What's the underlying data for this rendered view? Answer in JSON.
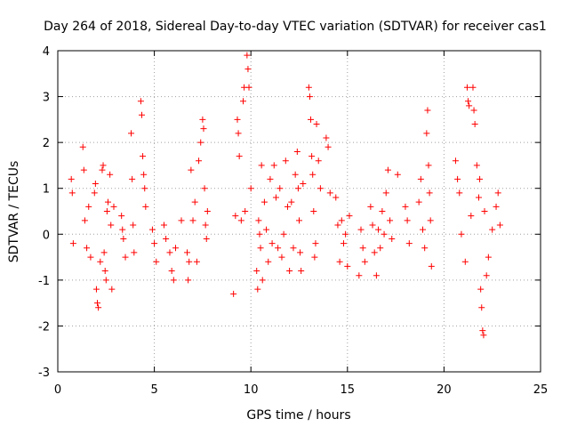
{
  "chart_data": {
    "type": "scatter",
    "title": "Day 264 of 2018, Sidereal Day-to-day VTEC variation (SDTVAR) for receiver cas1",
    "xlabel": "GPS time / hours",
    "ylabel": "SDTVAR / TECUs",
    "xlim": [
      0,
      25
    ],
    "ylim": [
      -3,
      4
    ],
    "xticks": [
      "0",
      "5",
      "10",
      "15",
      "20",
      "25"
    ],
    "yticks": [
      "-3",
      "-2",
      "-1",
      "0",
      "1",
      "2",
      "3",
      "4"
    ],
    "grid": true,
    "marker": "+",
    "color": "#ff0000",
    "series": [
      {
        "name": "SDTVAR",
        "points": [
          [
            0.7,
            1.2
          ],
          [
            0.75,
            0.9
          ],
          [
            0.8,
            -0.2
          ],
          [
            1.3,
            1.9
          ],
          [
            1.35,
            1.4
          ],
          [
            1.4,
            0.3
          ],
          [
            1.5,
            -0.3
          ],
          [
            1.6,
            0.6
          ],
          [
            1.7,
            -0.5
          ],
          [
            1.9,
            0.9
          ],
          [
            1.95,
            1.1
          ],
          [
            2.0,
            -1.2
          ],
          [
            2.05,
            -1.5
          ],
          [
            2.1,
            -1.6
          ],
          [
            2.2,
            -0.6
          ],
          [
            2.3,
            1.4
          ],
          [
            2.35,
            1.5
          ],
          [
            2.4,
            -0.4
          ],
          [
            2.45,
            -0.8
          ],
          [
            2.5,
            -1.0
          ],
          [
            2.55,
            0.5
          ],
          [
            2.6,
            0.7
          ],
          [
            2.7,
            1.3
          ],
          [
            2.75,
            0.2
          ],
          [
            2.8,
            -1.2
          ],
          [
            2.9,
            0.6
          ],
          [
            3.3,
            0.4
          ],
          [
            3.35,
            0.1
          ],
          [
            3.4,
            -0.1
          ],
          [
            3.5,
            -0.5
          ],
          [
            3.8,
            2.2
          ],
          [
            3.85,
            1.2
          ],
          [
            3.9,
            0.2
          ],
          [
            3.95,
            -0.4
          ],
          [
            4.3,
            2.9
          ],
          [
            4.35,
            2.6
          ],
          [
            4.4,
            1.7
          ],
          [
            4.45,
            1.3
          ],
          [
            4.5,
            1.0
          ],
          [
            4.55,
            0.6
          ],
          [
            4.9,
            0.1
          ],
          [
            5.0,
            -0.2
          ],
          [
            5.1,
            -0.6
          ],
          [
            5.5,
            0.2
          ],
          [
            5.6,
            -0.1
          ],
          [
            5.8,
            -0.4
          ],
          [
            5.9,
            -0.8
          ],
          [
            6.0,
            -1.0
          ],
          [
            6.1,
            -0.3
          ],
          [
            6.4,
            0.3
          ],
          [
            6.7,
            -0.4
          ],
          [
            6.75,
            -1.0
          ],
          [
            6.8,
            -0.6
          ],
          [
            6.9,
            1.4
          ],
          [
            7.0,
            0.3
          ],
          [
            7.1,
            0.7
          ],
          [
            7.2,
            -0.6
          ],
          [
            7.3,
            1.6
          ],
          [
            7.4,
            2.0
          ],
          [
            7.5,
            2.5
          ],
          [
            7.55,
            2.3
          ],
          [
            7.6,
            1.0
          ],
          [
            7.65,
            0.2
          ],
          [
            7.7,
            -0.1
          ],
          [
            7.75,
            0.5
          ],
          [
            9.1,
            -1.3
          ],
          [
            9.2,
            0.4
          ],
          [
            9.3,
            2.5
          ],
          [
            9.35,
            2.2
          ],
          [
            9.4,
            1.7
          ],
          [
            9.5,
            0.3
          ],
          [
            9.6,
            2.9
          ],
          [
            9.65,
            3.2
          ],
          [
            9.7,
            0.5
          ],
          [
            9.8,
            3.9
          ],
          [
            9.85,
            3.6
          ],
          [
            9.9,
            3.2
          ],
          [
            10.0,
            1.0
          ],
          [
            10.3,
            -0.8
          ],
          [
            10.35,
            -1.2
          ],
          [
            10.4,
            0.3
          ],
          [
            10.45,
            0.0
          ],
          [
            10.5,
            -0.3
          ],
          [
            10.55,
            1.5
          ],
          [
            10.6,
            -1.0
          ],
          [
            10.7,
            0.7
          ],
          [
            10.8,
            0.1
          ],
          [
            10.9,
            -0.6
          ],
          [
            11.0,
            1.2
          ],
          [
            11.1,
            -0.2
          ],
          [
            11.2,
            1.5
          ],
          [
            11.3,
            0.8
          ],
          [
            11.4,
            -0.3
          ],
          [
            11.5,
            1.0
          ],
          [
            11.6,
            -0.5
          ],
          [
            11.7,
            0.0
          ],
          [
            11.8,
            1.6
          ],
          [
            11.9,
            0.6
          ],
          [
            12.0,
            -0.8
          ],
          [
            12.1,
            0.7
          ],
          [
            12.2,
            -0.3
          ],
          [
            12.3,
            1.3
          ],
          [
            12.4,
            1.8
          ],
          [
            12.45,
            1.0
          ],
          [
            12.5,
            0.3
          ],
          [
            12.55,
            -0.4
          ],
          [
            12.6,
            -0.8
          ],
          [
            12.7,
            1.1
          ],
          [
            13.0,
            3.2
          ],
          [
            13.05,
            3.0
          ],
          [
            13.1,
            2.5
          ],
          [
            13.15,
            1.7
          ],
          [
            13.2,
            1.3
          ],
          [
            13.25,
            0.5
          ],
          [
            13.3,
            -0.5
          ],
          [
            13.35,
            -0.2
          ],
          [
            13.4,
            2.4
          ],
          [
            13.5,
            1.6
          ],
          [
            13.6,
            1.0
          ],
          [
            13.9,
            2.1
          ],
          [
            14.0,
            1.9
          ],
          [
            14.1,
            0.9
          ],
          [
            14.4,
            0.8
          ],
          [
            14.5,
            0.2
          ],
          [
            14.6,
            -0.6
          ],
          [
            14.7,
            0.3
          ],
          [
            14.8,
            -0.2
          ],
          [
            14.9,
            0.0
          ],
          [
            15.0,
            -0.7
          ],
          [
            15.1,
            0.4
          ],
          [
            15.6,
            -0.9
          ],
          [
            15.7,
            0.1
          ],
          [
            15.8,
            -0.3
          ],
          [
            15.9,
            -0.6
          ],
          [
            16.2,
            0.6
          ],
          [
            16.3,
            0.2
          ],
          [
            16.4,
            -0.4
          ],
          [
            16.5,
            -0.9
          ],
          [
            16.6,
            0.1
          ],
          [
            16.7,
            -0.3
          ],
          [
            16.8,
            0.5
          ],
          [
            16.9,
            0.0
          ],
          [
            17.0,
            0.9
          ],
          [
            17.1,
            1.4
          ],
          [
            17.2,
            0.3
          ],
          [
            17.3,
            -0.1
          ],
          [
            17.6,
            1.3
          ],
          [
            18.0,
            0.6
          ],
          [
            18.1,
            0.3
          ],
          [
            18.2,
            -0.2
          ],
          [
            18.7,
            0.7
          ],
          [
            18.8,
            1.2
          ],
          [
            18.9,
            0.1
          ],
          [
            19.0,
            -0.3
          ],
          [
            19.1,
            2.2
          ],
          [
            19.15,
            2.7
          ],
          [
            19.2,
            1.5
          ],
          [
            19.25,
            0.9
          ],
          [
            19.3,
            0.3
          ],
          [
            19.35,
            -0.7
          ],
          [
            20.6,
            1.6
          ],
          [
            20.7,
            1.2
          ],
          [
            20.8,
            0.9
          ],
          [
            20.9,
            0.0
          ],
          [
            21.1,
            -0.6
          ],
          [
            21.2,
            3.2
          ],
          [
            21.25,
            2.9
          ],
          [
            21.3,
            2.8
          ],
          [
            21.4,
            0.4
          ],
          [
            21.5,
            3.2
          ],
          [
            21.55,
            2.7
          ],
          [
            21.6,
            2.4
          ],
          [
            21.7,
            1.5
          ],
          [
            21.8,
            0.8
          ],
          [
            21.85,
            1.2
          ],
          [
            21.9,
            -1.2
          ],
          [
            21.95,
            -1.6
          ],
          [
            22.0,
            -2.1
          ],
          [
            22.05,
            -2.2
          ],
          [
            22.1,
            0.5
          ],
          [
            22.2,
            -0.9
          ],
          [
            22.3,
            -0.5
          ],
          [
            22.5,
            0.1
          ],
          [
            22.7,
            0.6
          ],
          [
            22.8,
            0.9
          ],
          [
            22.9,
            0.2
          ]
        ]
      }
    ]
  }
}
